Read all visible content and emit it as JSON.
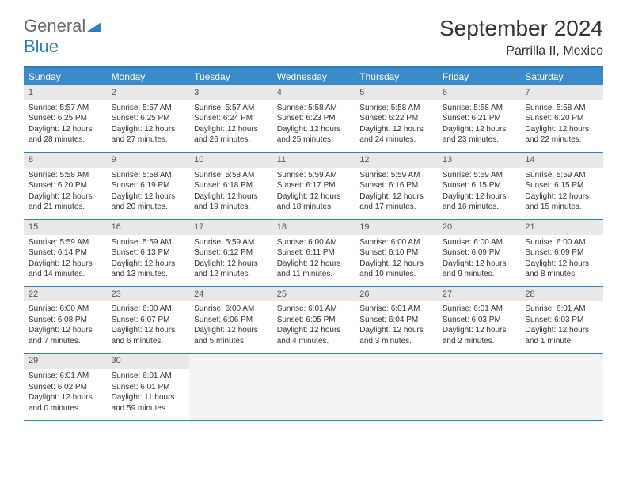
{
  "logo": {
    "text1": "General",
    "text2": "Blue"
  },
  "title": "September 2024",
  "subtitle": "Parrilla II, Mexico",
  "colors": {
    "header_bg": "#3b8bca",
    "border": "#2f7fc1",
    "daynum_bg": "#e8e8e8",
    "logo_gray": "#6a6a6a",
    "logo_blue": "#2f7fc1"
  },
  "day_names": [
    "Sunday",
    "Monday",
    "Tuesday",
    "Wednesday",
    "Thursday",
    "Friday",
    "Saturday"
  ],
  "weeks": [
    [
      {
        "n": "1",
        "sr": "5:57 AM",
        "ss": "6:25 PM",
        "dl": "12 hours and 28 minutes."
      },
      {
        "n": "2",
        "sr": "5:57 AM",
        "ss": "6:25 PM",
        "dl": "12 hours and 27 minutes."
      },
      {
        "n": "3",
        "sr": "5:57 AM",
        "ss": "6:24 PM",
        "dl": "12 hours and 26 minutes."
      },
      {
        "n": "4",
        "sr": "5:58 AM",
        "ss": "6:23 PM",
        "dl": "12 hours and 25 minutes."
      },
      {
        "n": "5",
        "sr": "5:58 AM",
        "ss": "6:22 PM",
        "dl": "12 hours and 24 minutes."
      },
      {
        "n": "6",
        "sr": "5:58 AM",
        "ss": "6:21 PM",
        "dl": "12 hours and 23 minutes."
      },
      {
        "n": "7",
        "sr": "5:58 AM",
        "ss": "6:20 PM",
        "dl": "12 hours and 22 minutes."
      }
    ],
    [
      {
        "n": "8",
        "sr": "5:58 AM",
        "ss": "6:20 PM",
        "dl": "12 hours and 21 minutes."
      },
      {
        "n": "9",
        "sr": "5:58 AM",
        "ss": "6:19 PM",
        "dl": "12 hours and 20 minutes."
      },
      {
        "n": "10",
        "sr": "5:58 AM",
        "ss": "6:18 PM",
        "dl": "12 hours and 19 minutes."
      },
      {
        "n": "11",
        "sr": "5:59 AM",
        "ss": "6:17 PM",
        "dl": "12 hours and 18 minutes."
      },
      {
        "n": "12",
        "sr": "5:59 AM",
        "ss": "6:16 PM",
        "dl": "12 hours and 17 minutes."
      },
      {
        "n": "13",
        "sr": "5:59 AM",
        "ss": "6:15 PM",
        "dl": "12 hours and 16 minutes."
      },
      {
        "n": "14",
        "sr": "5:59 AM",
        "ss": "6:15 PM",
        "dl": "12 hours and 15 minutes."
      }
    ],
    [
      {
        "n": "15",
        "sr": "5:59 AM",
        "ss": "6:14 PM",
        "dl": "12 hours and 14 minutes."
      },
      {
        "n": "16",
        "sr": "5:59 AM",
        "ss": "6:13 PM",
        "dl": "12 hours and 13 minutes."
      },
      {
        "n": "17",
        "sr": "5:59 AM",
        "ss": "6:12 PM",
        "dl": "12 hours and 12 minutes."
      },
      {
        "n": "18",
        "sr": "6:00 AM",
        "ss": "6:11 PM",
        "dl": "12 hours and 11 minutes."
      },
      {
        "n": "19",
        "sr": "6:00 AM",
        "ss": "6:10 PM",
        "dl": "12 hours and 10 minutes."
      },
      {
        "n": "20",
        "sr": "6:00 AM",
        "ss": "6:09 PM",
        "dl": "12 hours and 9 minutes."
      },
      {
        "n": "21",
        "sr": "6:00 AM",
        "ss": "6:09 PM",
        "dl": "12 hours and 8 minutes."
      }
    ],
    [
      {
        "n": "22",
        "sr": "6:00 AM",
        "ss": "6:08 PM",
        "dl": "12 hours and 7 minutes."
      },
      {
        "n": "23",
        "sr": "6:00 AM",
        "ss": "6:07 PM",
        "dl": "12 hours and 6 minutes."
      },
      {
        "n": "24",
        "sr": "6:00 AM",
        "ss": "6:06 PM",
        "dl": "12 hours and 5 minutes."
      },
      {
        "n": "25",
        "sr": "6:01 AM",
        "ss": "6:05 PM",
        "dl": "12 hours and 4 minutes."
      },
      {
        "n": "26",
        "sr": "6:01 AM",
        "ss": "6:04 PM",
        "dl": "12 hours and 3 minutes."
      },
      {
        "n": "27",
        "sr": "6:01 AM",
        "ss": "6:03 PM",
        "dl": "12 hours and 2 minutes."
      },
      {
        "n": "28",
        "sr": "6:01 AM",
        "ss": "6:03 PM",
        "dl": "12 hours and 1 minute."
      }
    ],
    [
      {
        "n": "29",
        "sr": "6:01 AM",
        "ss": "6:02 PM",
        "dl": "12 hours and 0 minutes."
      },
      {
        "n": "30",
        "sr": "6:01 AM",
        "ss": "6:01 PM",
        "dl": "11 hours and 59 minutes."
      },
      null,
      null,
      null,
      null,
      null
    ]
  ],
  "labels": {
    "sunrise": "Sunrise:",
    "sunset": "Sunset:",
    "daylight": "Daylight:"
  }
}
